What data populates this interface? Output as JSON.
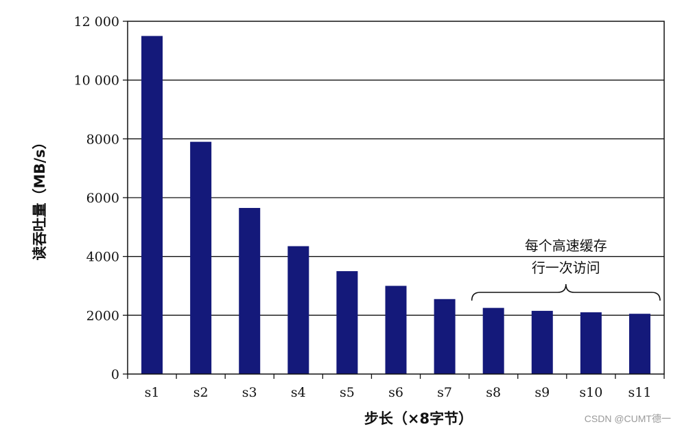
{
  "chart_data": {
    "type": "bar",
    "categories": [
      "s1",
      "s2",
      "s3",
      "s4",
      "s5",
      "s6",
      "s7",
      "s8",
      "s9",
      "s10",
      "s11"
    ],
    "values": [
      11500,
      7900,
      5650,
      4350,
      3500,
      3000,
      2550,
      2250,
      2150,
      2100,
      2050
    ],
    "xlabel": "步长（×8字节）",
    "ylabel": "读吞吐量（MB/s）",
    "ylim": [
      0,
      12000
    ],
    "yticks": [
      0,
      2000,
      4000,
      6000,
      8000,
      10000,
      12000
    ],
    "ytick_labels": [
      "0",
      "2000",
      "4000",
      "6000",
      "8000",
      "10 000",
      "12 000"
    ],
    "grid": true,
    "bar_color": "#14197a",
    "annotation": {
      "line1": "每个高速缓存",
      "line2": "行一次访问",
      "span": [
        "s8",
        "s11"
      ]
    }
  },
  "watermark": "CSDN @CUMT德一"
}
